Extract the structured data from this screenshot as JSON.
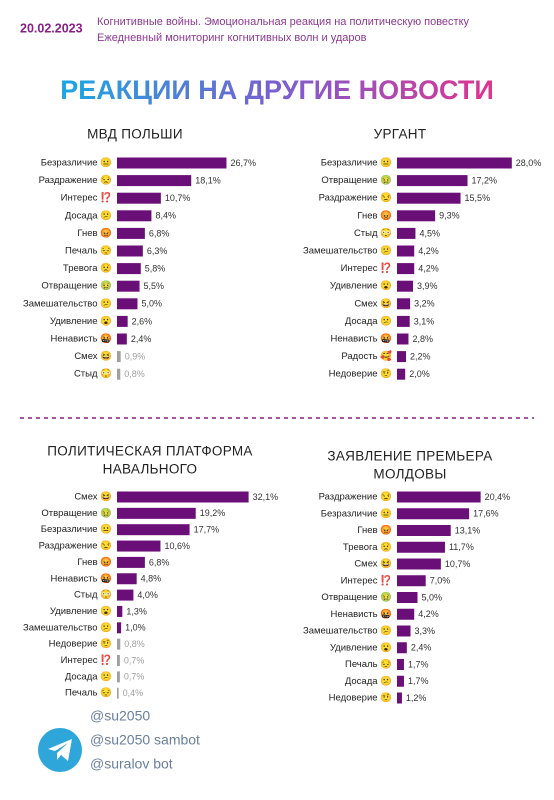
{
  "header": {
    "date": "20.02.2023",
    "lines": [
      "Когнитивные войны. Эмоциональная реакция на политическую повестку",
      "Ежедневный мониторинг когнитивных волн и ударов"
    ]
  },
  "title": "РЕАКЦИИ НА ДРУГИЕ НОВОСТИ",
  "chart_data": [
    {
      "type": "bar",
      "orientation": "horizontal",
      "title": [
        "МВД ПОЛЬШИ"
      ],
      "categories": [
        "Безразличие 😐",
        "Раздражение 😒",
        "Интерес ⁉️",
        "Досада 😕",
        "Гнев 😡",
        "Печаль 😔",
        "Тревога 😟",
        "Отвращение 🤢",
        "Замешательство 😕",
        "Удивление 😮",
        "Ненависть 🤬",
        "Смех 😆",
        "Стыд 😳"
      ],
      "values": [
        26.7,
        18.1,
        10.7,
        8.4,
        6.8,
        6.3,
        5.8,
        5.5,
        5.0,
        2.6,
        2.4,
        0.9,
        0.8
      ],
      "value_labels": [
        "26,7%",
        "18,1%",
        "10,7%",
        "8,4%",
        "6,8%",
        "6,3%",
        "5,8%",
        "5,5%",
        "5,0%",
        "2,6%",
        "2,4%",
        "0,9%",
        "0,8%"
      ],
      "colors": [
        "#6b0f78",
        "#6b0f78",
        "#6b0f78",
        "#6b0f78",
        "#6b0f78",
        "#6b0f78",
        "#6b0f78",
        "#6b0f78",
        "#6b0f78",
        "#6b0f78",
        "#6b0f78",
        "#a0a0a0",
        "#a0a0a0"
      ]
    },
    {
      "type": "bar",
      "orientation": "horizontal",
      "title": [
        "УРГАНТ"
      ],
      "categories": [
        "Безразличие 😐",
        "Отвращение 🤢",
        "Раздражение 😒",
        "Гнев 😡",
        "Стыд 😳",
        "Замешательство 😕",
        "Интерес ⁉️",
        "Удивление 😮",
        "Смех 😆",
        "Досада 😕",
        "Ненависть 🤬",
        "Радость 🥰",
        "Недоверие 🤨"
      ],
      "values": [
        28.0,
        17.2,
        15.5,
        9.3,
        4.5,
        4.2,
        4.2,
        3.9,
        3.2,
        3.1,
        2.8,
        2.2,
        2.0
      ],
      "value_labels": [
        "28,0%",
        "17,2%",
        "15,5%",
        "9,3%",
        "4,5%",
        "4,2%",
        "4,2%",
        "3,9%",
        "3,2%",
        "3,1%",
        "2,8%",
        "2,2%",
        "2,0%"
      ],
      "colors": [
        "#6b0f78",
        "#6b0f78",
        "#6b0f78",
        "#6b0f78",
        "#6b0f78",
        "#6b0f78",
        "#6b0f78",
        "#6b0f78",
        "#6b0f78",
        "#6b0f78",
        "#6b0f78",
        "#6b0f78",
        "#6b0f78"
      ]
    },
    {
      "type": "bar",
      "orientation": "horizontal",
      "title": [
        "ПОЛИТИЧЕСКАЯ ПЛАТФОРМА",
        "НАВАЛЬНОГО"
      ],
      "categories": [
        "Смех 😆",
        "Отвращение 🤢",
        "Безразличие 😐",
        "Раздражение 😒",
        "Гнев 😡",
        "Ненависть 🤬",
        "Стыд 😳",
        "Удивление 😮",
        "Замешательство 😕",
        "Недоверие 🤨",
        "Интерес ⁉️",
        "Досада 😕",
        "Печаль 😔"
      ],
      "values": [
        32.1,
        19.2,
        17.7,
        10.6,
        6.8,
        4.8,
        4.0,
        1.3,
        1.0,
        0.8,
        0.7,
        0.7,
        0.4
      ],
      "value_labels": [
        "32,1%",
        "19,2%",
        "17,7%",
        "10,6%",
        "6,8%",
        "4,8%",
        "4,0%",
        "1,3%",
        "1,0%",
        "0,8%",
        "0,7%",
        "0,7%",
        "0,4%"
      ],
      "colors": [
        "#6b0f78",
        "#6b0f78",
        "#6b0f78",
        "#6b0f78",
        "#6b0f78",
        "#6b0f78",
        "#6b0f78",
        "#6b0f78",
        "#6b0f78",
        "#a0a0a0",
        "#a0a0a0",
        "#a0a0a0",
        "#a0a0a0"
      ]
    },
    {
      "type": "bar",
      "orientation": "horizontal",
      "title": [
        "ЗАЯВЛЕНИЕ ПРЕМЬЕРА",
        "МОЛДОВЫ"
      ],
      "categories": [
        "Раздражение 😒",
        "Безразличие 😐",
        "Гнев 😡",
        "Тревога 😟",
        "Смех 😆",
        "Интерес ⁉️",
        "Отвращение 🤢",
        "Ненависть 🤬",
        "Замешательство 😕",
        "Удивление 😮",
        "Печаль 😔",
        "Досада 😕",
        "Недоверие 🤨"
      ],
      "values": [
        20.4,
        17.6,
        13.1,
        11.7,
        10.7,
        7.0,
        5.0,
        4.2,
        3.3,
        2.4,
        1.7,
        1.7,
        1.2
      ],
      "value_labels": [
        "20,4%",
        "17,6%",
        "13,1%",
        "11,7%",
        "10,7%",
        "7,0%",
        "5,0%",
        "4,2%",
        "3,3%",
        "2,4%",
        "1,7%",
        "1,7%",
        "1,2%"
      ],
      "colors": [
        "#6b0f78",
        "#6b0f78",
        "#6b0f78",
        "#6b0f78",
        "#6b0f78",
        "#6b0f78",
        "#6b0f78",
        "#6b0f78",
        "#6b0f78",
        "#6b0f78",
        "#6b0f78",
        "#6b0f78",
        "#6b0f78"
      ]
    }
  ],
  "footer": {
    "handles": [
      "@su2050",
      "@su2050 sambot",
      "@suralov bot"
    ]
  }
}
